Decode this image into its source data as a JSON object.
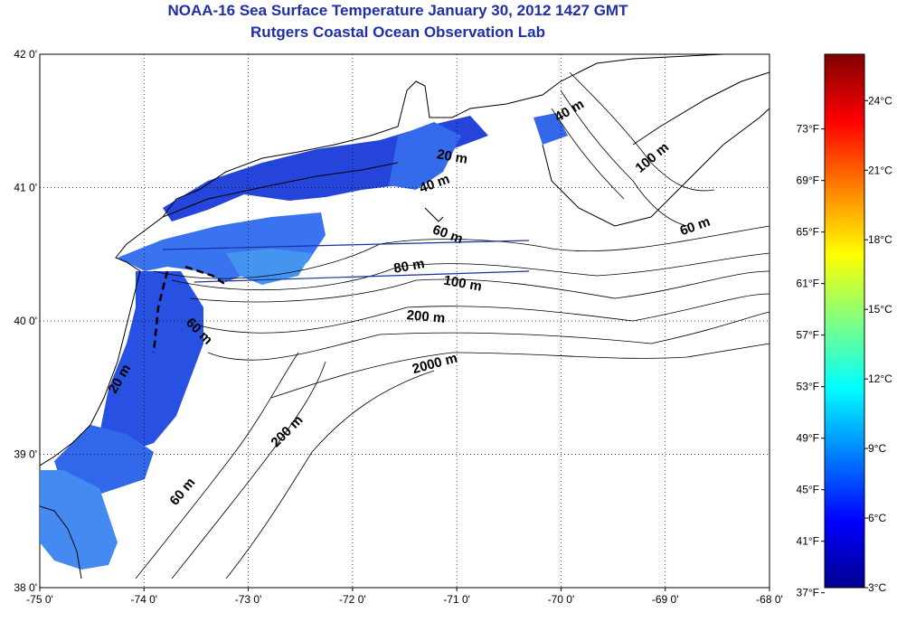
{
  "title": "NOAA-16 Sea Surface Temperature January 30, 2012 1427 GMT",
  "subtitle": "Rutgers Coastal Ocean Observation Lab",
  "map": {
    "lon_range": [
      -75,
      -68
    ],
    "lat_range": [
      38,
      42
    ],
    "lon_ticks": [
      {
        "value": -75,
        "label": "-75 0'"
      },
      {
        "value": -74,
        "label": "-74 0'"
      },
      {
        "value": -73,
        "label": "-73 0'"
      },
      {
        "value": -72,
        "label": "-72 0'"
      },
      {
        "value": -71,
        "label": "-71 0'"
      },
      {
        "value": -70,
        "label": "-70 0'"
      },
      {
        "value": -69,
        "label": "-69 0'"
      },
      {
        "value": -68,
        "label": "-68 0'"
      }
    ],
    "lat_ticks": [
      {
        "value": 42,
        "label": "42 0'"
      },
      {
        "value": 41,
        "label": "41 0'"
      },
      {
        "value": 40,
        "label": "40 0'"
      },
      {
        "value": 39,
        "label": "39 0'"
      },
      {
        "value": 38,
        "label": "38 0'"
      }
    ],
    "grid": "dotted",
    "isobath_labels": [
      {
        "text": "40 m",
        "lon": -69.9,
        "lat": 41.55,
        "angle": -30
      },
      {
        "text": "100 m",
        "lon": -69.1,
        "lat": 41.2,
        "angle": -40
      },
      {
        "text": "20 m",
        "lon": -71.05,
        "lat": 41.2,
        "angle": 10
      },
      {
        "text": "40 m",
        "lon": -71.2,
        "lat": 41.0,
        "angle": -20
      },
      {
        "text": "60 m",
        "lon": -71.1,
        "lat": 40.62,
        "angle": 20
      },
      {
        "text": "60 m",
        "lon": -68.7,
        "lat": 40.68,
        "angle": -20
      },
      {
        "text": "80 m",
        "lon": -71.45,
        "lat": 40.38,
        "angle": -10
      },
      {
        "text": "100 m",
        "lon": -70.95,
        "lat": 40.25,
        "angle": 10
      },
      {
        "text": "200 m",
        "lon": -71.3,
        "lat": 40.0,
        "angle": 5
      },
      {
        "text": "60 m",
        "lon": -73.5,
        "lat": 39.9,
        "angle": 45
      },
      {
        "text": "2000 m",
        "lon": -71.2,
        "lat": 39.65,
        "angle": -15
      },
      {
        "text": "20 m",
        "lon": -74.2,
        "lat": 39.55,
        "angle": -60
      },
      {
        "text": "200 m",
        "lon": -72.6,
        "lat": 39.15,
        "angle": -45
      },
      {
        "text": "60 m",
        "lon": -73.6,
        "lat": 38.7,
        "angle": -50
      }
    ]
  },
  "colorbar": {
    "range_c": [
      3,
      26
    ],
    "celsius_labels": [
      {
        "value": 24,
        "label": "24°C"
      },
      {
        "value": 21,
        "label": "21°C"
      },
      {
        "value": 18,
        "label": "18°C"
      },
      {
        "value": 15,
        "label": "15°C"
      },
      {
        "value": 12,
        "label": "12°C"
      },
      {
        "value": 9,
        "label": "9°C"
      },
      {
        "value": 6,
        "label": "6°C"
      },
      {
        "value": 3,
        "label": "3°C"
      }
    ],
    "fahrenheit_labels": [
      {
        "value": 73,
        "label": "73°F"
      },
      {
        "value": 69,
        "label": "69°F"
      },
      {
        "value": 65,
        "label": "65°F"
      },
      {
        "value": 61,
        "label": "61°F"
      },
      {
        "value": 57,
        "label": "57°F"
      },
      {
        "value": 53,
        "label": "53°F"
      },
      {
        "value": 49,
        "label": "49°F"
      },
      {
        "value": 45,
        "label": "45°F"
      },
      {
        "value": 41,
        "label": "41°F"
      },
      {
        "value": 37,
        "label": "37°F"
      }
    ],
    "colors": [
      "#00008f",
      "#0000ff",
      "#0080ff",
      "#00ffff",
      "#80ff80",
      "#ffff00",
      "#ff8000",
      "#ff0000",
      "#800000"
    ]
  }
}
